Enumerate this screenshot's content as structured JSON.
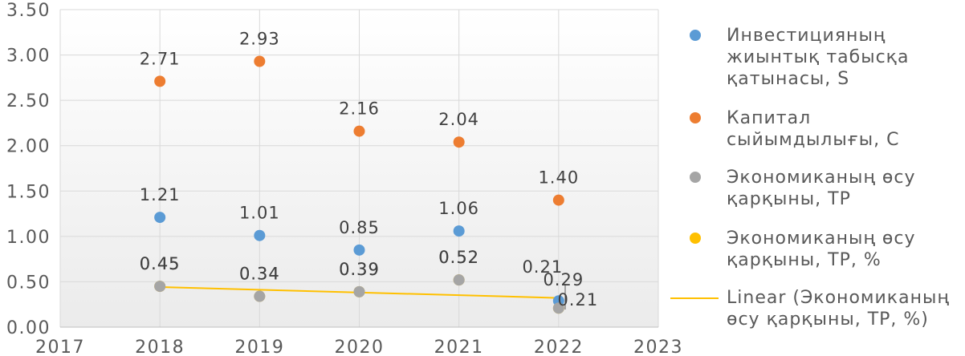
{
  "chart_data": {
    "type": "scatter",
    "xlim": [
      2017,
      2023
    ],
    "ylim": [
      0,
      3.5
    ],
    "x_ticks": [
      2017,
      2018,
      2019,
      2020,
      2021,
      2022,
      2023
    ],
    "y_ticks": [
      "0.00",
      "0.50",
      "1.00",
      "1.50",
      "2.00",
      "2.50",
      "3.00",
      "3.50"
    ],
    "grid": true,
    "data_labels": true,
    "legend_position": "right",
    "series": [
      {
        "name": "Инвестицияның жиынтық табысқа қатынасы, S",
        "color": "#5B9BD5",
        "x": [
          2018,
          2019,
          2020,
          2021,
          2022
        ],
        "y": [
          1.21,
          1.01,
          0.85,
          1.06,
          0.29
        ]
      },
      {
        "name": "Капитал сыйымдылығы, C",
        "color": "#ED7D31",
        "x": [
          2018,
          2019,
          2020,
          2021,
          2022
        ],
        "y": [
          2.71,
          2.93,
          2.16,
          2.04,
          1.4
        ]
      },
      {
        "name": "Экономиканың өсу қарқыны, TP",
        "color": "#A5A5A5",
        "x": [
          2018,
          2019,
          2020,
          2021,
          2022
        ],
        "y": [
          0.45,
          0.34,
          0.39,
          0.52,
          0.21
        ]
      },
      {
        "name": "Экономиканың өсу қарқыны, TP, %",
        "color": "#FFC000",
        "x": [
          2018,
          2019,
          2020,
          2021,
          2022
        ],
        "y": [
          0.45,
          0.34,
          0.39,
          0.52,
          0.21
        ]
      }
    ],
    "trendline": {
      "name": "Linear (Экономиканың өсу қарқыны, TP, %)",
      "type": "linear",
      "series_index": 3,
      "color": "#FFC000"
    }
  }
}
